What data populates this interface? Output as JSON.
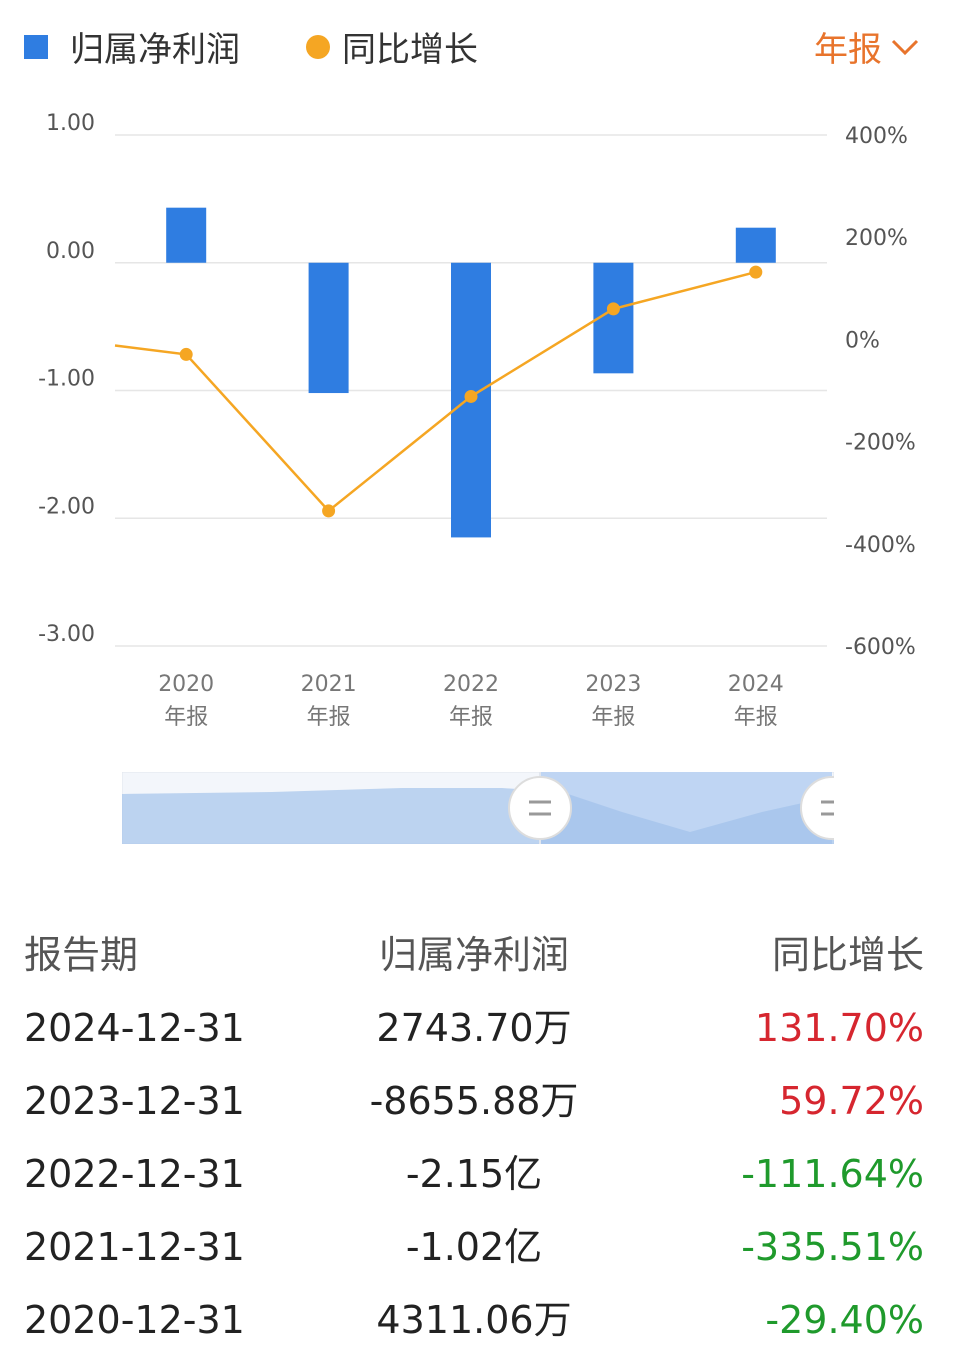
{
  "legend": {
    "bar_label": "归属净利润",
    "line_label": "同比增长"
  },
  "period_select": {
    "label": "年报"
  },
  "colors": {
    "bar": "#2f7de1",
    "line": "#f5a623",
    "accent": "#e8742c",
    "positive": "#d6262f",
    "negative": "#1f9a2c"
  },
  "chart_data": {
    "type": "bar",
    "categories": [
      [
        "2020",
        "年报"
      ],
      [
        "2021",
        "年报"
      ],
      [
        "2022",
        "年报"
      ],
      [
        "2023",
        "年报"
      ],
      [
        "2024",
        "年报"
      ]
    ],
    "y_left": {
      "ticks": [
        "1.00",
        "0.00",
        "-1.00",
        "-2.00",
        "-3.00"
      ],
      "range": [
        -3,
        1
      ],
      "unit": "亿"
    },
    "y_right": {
      "ticks": [
        "400%",
        "200%",
        "0%",
        "-200%",
        "-400%",
        "-600%"
      ],
      "range": [
        -600,
        400
      ]
    },
    "series": [
      {
        "name": "归属净利润",
        "type": "bar",
        "axis": "left",
        "values": [
          0.4311,
          -1.02,
          -2.15,
          -0.8656,
          0.2744
        ]
      },
      {
        "name": "同比增长",
        "type": "line",
        "axis": "right",
        "values": [
          -29.4,
          -335.51,
          -111.64,
          59.72,
          131.7
        ],
        "lead_in_value": -12
      }
    ],
    "grid": true,
    "legend": "top-left"
  },
  "table": {
    "headers": [
      "报告期",
      "归属净利润",
      "同比增长"
    ],
    "rows": [
      {
        "date": "2024-12-31",
        "profit": "2743.70万",
        "growth": "131.70%",
        "sign": "pos"
      },
      {
        "date": "2023-12-31",
        "profit": "-8655.88万",
        "growth": "59.72%",
        "sign": "pos"
      },
      {
        "date": "2022-12-31",
        "profit": "-2.15亿",
        "growth": "-111.64%",
        "sign": "neg"
      },
      {
        "date": "2021-12-31",
        "profit": "-1.02亿",
        "growth": "-335.51%",
        "sign": "neg"
      },
      {
        "date": "2020-12-31",
        "profit": "4311.06万",
        "growth": "-29.40%",
        "sign": "neg"
      }
    ]
  }
}
